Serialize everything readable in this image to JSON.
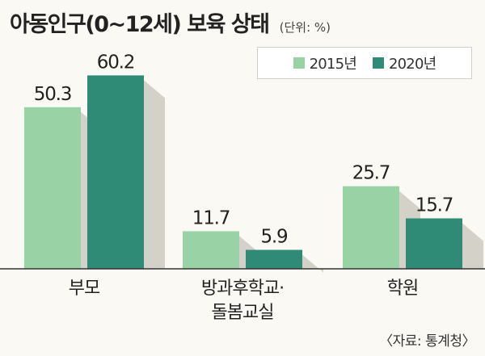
{
  "header": {
    "title": "아동인구(0~12세) 보육 상태",
    "unit": "(단위: %)"
  },
  "source": "〈자료: 통계청〉",
  "colors": {
    "series_2015": "#99d2a5",
    "series_2020": "#2f8a76",
    "shadow": "#d4d1c8"
  },
  "chart_data": {
    "type": "bar",
    "title": "아동인구(0~12세) 보육 상태",
    "xlabel": "",
    "ylabel": "",
    "ylim": [
      0,
      65
    ],
    "legend_position": "top-right",
    "grid": false,
    "categories": [
      [
        "부모"
      ],
      [
        "방과후학교·",
        "돌봄교실"
      ],
      [
        "학원"
      ]
    ],
    "series": [
      {
        "name": "2015년",
        "values": [
          50.3,
          11.7,
          25.7
        ]
      },
      {
        "name": "2020년",
        "values": [
          60.2,
          5.9,
          15.7
        ]
      }
    ]
  }
}
